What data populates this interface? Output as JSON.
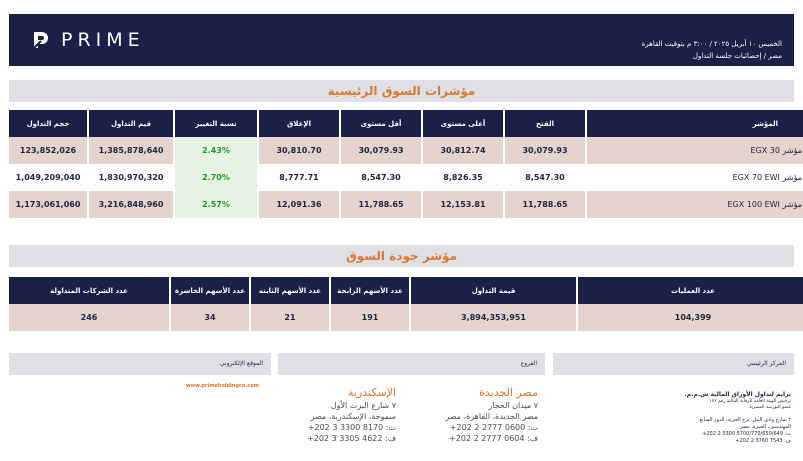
{
  "header": {
    "logo_text": "PRIME",
    "date_line": "الخميس ١٠ أبريل ٢٠٢٥ / ٣:٠٠ م بتوقيت القاهرة",
    "subtitle": "مصر / إحصائيات جلسة التداول"
  },
  "main_indices": {
    "title": "مؤشرات السوق الرئيسية",
    "columns": [
      "حجم التداول",
      "قيم التداول",
      "نسبة التغيير",
      "الإغلاق",
      "أقل مستوى",
      "أعلى مستوى",
      "الفتح",
      "المؤشر"
    ],
    "rows": [
      {
        "volume": "123,852,026",
        "value": "1,385,878,640",
        "change": "2.43%",
        "close": "30,810.70",
        "low": "30,079.93",
        "high": "30,812.74",
        "open": "30,079.93",
        "index": "مؤشر EGX 30"
      },
      {
        "volume": "1,049,209,040",
        "value": "1,830,970,320",
        "change": "2.70%",
        "close": "8,777.71",
        "low": "8,547.30",
        "high": "8,826.35",
        "open": "8,547.30",
        "index": "مؤشر EGX 70 EWI"
      },
      {
        "volume": "1,173,061,060",
        "value": "3,216,848,960",
        "change": "2.57%",
        "close": "12,091.36",
        "low": "11,788.65",
        "high": "12,153.81",
        "open": "11,788.65",
        "index": "مؤشر EGX 100 EWI"
      }
    ]
  },
  "market_quality": {
    "title": "مؤشر جودة السوق",
    "columns": [
      "عدد الشركات المتداولة",
      "عدد الأسهم الخاسرة",
      "عدد الأسهم الثابته",
      "عدد الأسهم الرابحة",
      "قيمة التداول",
      "عدد العمليات"
    ],
    "row": {
      "traded_companies": "246",
      "losers": "34",
      "unchanged": "21",
      "gainers": "191",
      "turnover": "3,894,353,951",
      "transactions": "104,399"
    }
  },
  "footer": {
    "website_label": "الموقع الإلكتروني",
    "website_url": "www.primeholdingco.com",
    "branches_label": "الفروع",
    "hq_label": "المركز الرئيسي",
    "alex": {
      "name": "الإسكندرية",
      "line1": "٧ شارع البرت الأول",
      "line2": "سموحة، الإسكندرية، مصر",
      "phone": "ت: 8170 3300 3 202+",
      "fax": "ف: 4622 3305 3 202+"
    },
    "newcairo": {
      "name": "مصر الجديدة",
      "line1": "٧ ميدان الحجاز",
      "line2": "مصر الجديدة، القاهرة، مصر",
      "phone": "ت: 0600 2777 2 202+",
      "fax": "ف: 0604 2777 2 202+"
    },
    "hq": {
      "company": "برايم لتداول الأوراق المالية ش.م.م.",
      "license1": "ترخيص الهيئة العامة للرقابة المالية رقم ١٧٢",
      "license2": "عضو البورصة المصرية",
      "addr1": "٢ شارع وادي النيل، برج الحرية، الدور السابع",
      "addr2": "المهندسين، الجيزة، مصر",
      "phone": "ت: 5700/770/650/649 3300 2 202+",
      "fax": "ف: 7543 3760 2 202+"
    }
  }
}
